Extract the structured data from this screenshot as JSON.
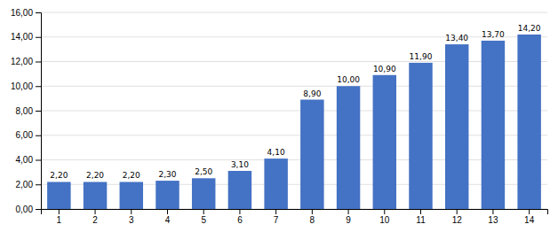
{
  "chart_data": {
    "type": "bar",
    "categories": [
      1,
      2,
      3,
      4,
      5,
      6,
      7,
      8,
      9,
      10,
      11,
      12,
      13,
      14
    ],
    "values": [
      2.2,
      2.2,
      2.2,
      2.3,
      2.5,
      3.1,
      4.1,
      8.9,
      10.0,
      10.9,
      11.9,
      13.4,
      13.7,
      14.2
    ],
    "value_labels": [
      "2,20",
      "2,20",
      "2,20",
      "2,30",
      "2,50",
      "3,10",
      "4,10",
      "8,90",
      "10,00",
      "10,90",
      "11,90",
      "13,40",
      "13,70",
      "14,20"
    ],
    "data_labels": true,
    "color": "#4472C4",
    "ylim": [
      0,
      16
    ],
    "yticks": [
      {
        "value": 0,
        "label": "0,00"
      },
      {
        "value": 2,
        "label": "2,00"
      },
      {
        "value": 4,
        "label": "4,00"
      },
      {
        "value": 6,
        "label": "6,00"
      },
      {
        "value": 8,
        "label": "8,00"
      },
      {
        "value": 10,
        "label": "10,00"
      },
      {
        "value": 12,
        "label": "12,00"
      },
      {
        "value": 14,
        "label": "14,00"
      },
      {
        "value": 16,
        "label": "16,00"
      }
    ],
    "grid": true
  }
}
